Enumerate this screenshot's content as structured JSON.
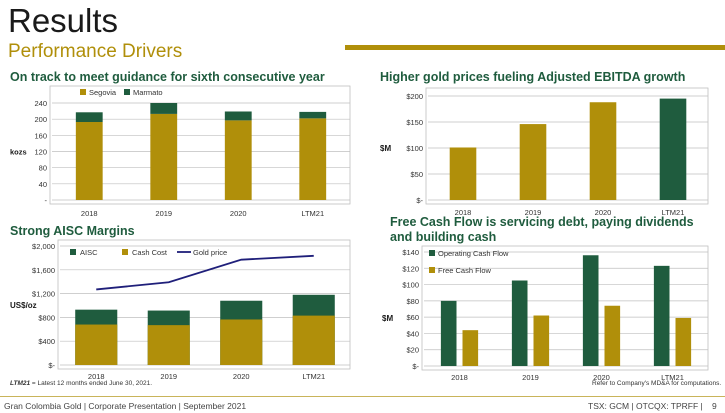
{
  "header": {
    "title": "Results",
    "subtitle": "Performance Drivers"
  },
  "colors": {
    "gold": "#b08f0a",
    "green": "#1f5c3e",
    "navy": "#1f1f7a",
    "heading": "#1f5c3e"
  },
  "chart_data": [
    {
      "id": "production",
      "heading": "On track to meet guidance for sixth consecutive year",
      "type": "bar",
      "stacked": true,
      "categories": [
        "2018",
        "2019",
        "2020",
        "LTM21"
      ],
      "series": [
        {
          "name": "Segovia",
          "values": [
            193,
            213,
            197,
            202
          ],
          "color": "#b08f0a"
        },
        {
          "name": "Marmato",
          "values": [
            24,
            27,
            22,
            16
          ],
          "color": "#1f5c3e"
        }
      ],
      "ylabel": "kozs",
      "ylim": [
        0,
        240
      ],
      "yticks": [
        "-",
        "40",
        "80",
        "120",
        "160",
        "200",
        "240"
      ],
      "legend": "top-left",
      "grid": true
    },
    {
      "id": "ebitda",
      "heading": "Higher gold prices fueling Adjusted EBITDA growth",
      "type": "bar",
      "categories": [
        "2018",
        "2019",
        "2020",
        "LTM21"
      ],
      "values": [
        101,
        146,
        188,
        195
      ],
      "colors": [
        "#b08f0a",
        "#b08f0a",
        "#b08f0a",
        "#1f5c3e"
      ],
      "ylabel": "$M",
      "ylim": [
        0,
        200
      ],
      "yticks": [
        "$-",
        "$50",
        "$100",
        "$150",
        "$200"
      ],
      "grid": true
    },
    {
      "id": "aisc",
      "heading": "Strong AISC Margins",
      "type": "bar",
      "categories": [
        "2018",
        "2019",
        "2020",
        "LTM21"
      ],
      "series": [
        {
          "name": "AISC",
          "values": [
            930,
            915,
            1080,
            1180
          ],
          "color": "#1f5c3e"
        },
        {
          "name": "Cash Cost",
          "values": [
            680,
            670,
            765,
            830
          ],
          "color": "#b08f0a"
        },
        {
          "name": "Gold price",
          "values": [
            1270,
            1390,
            1770,
            1835
          ],
          "color": "#1f1f7a",
          "type": "line"
        }
      ],
      "ylabel": "US$/oz",
      "ylim": [
        0,
        2000
      ],
      "yticks": [
        "$-",
        "$400",
        "$800",
        "$1,200",
        "$1,600",
        "$2,000"
      ],
      "legend": "top",
      "grid": true
    },
    {
      "id": "fcf",
      "heading": "Free Cash Flow is servicing debt, paying dividends and building cash",
      "type": "bar",
      "categories": [
        "2018",
        "2019",
        "2020",
        "LTM21"
      ],
      "series": [
        {
          "name": "Operating Cash Flow",
          "values": [
            80,
            105,
            136,
            123
          ],
          "color": "#1f5c3e"
        },
        {
          "name": "Free Cash Flow",
          "values": [
            44,
            62,
            74,
            59
          ],
          "color": "#b08f0a"
        }
      ],
      "ylabel": "$M",
      "ylim": [
        0,
        140
      ],
      "yticks": [
        "$-",
        "$20",
        "$40",
        "$60",
        "$80",
        "$100",
        "$120",
        "$140"
      ],
      "legend": "top-left",
      "grid": true
    }
  ],
  "notes": {
    "ltm_term": "LTM21",
    "ltm_text": " = Latest 12 months ended June 30, 2021.",
    "mdna": "Refer to Company's MD&A for computations."
  },
  "footer": {
    "left": "Gran Colombia Gold  |  Corporate Presentation  |  September 2021",
    "right": "TSX: GCM  |  OTCQX: TPRFF  |",
    "page": "9"
  }
}
